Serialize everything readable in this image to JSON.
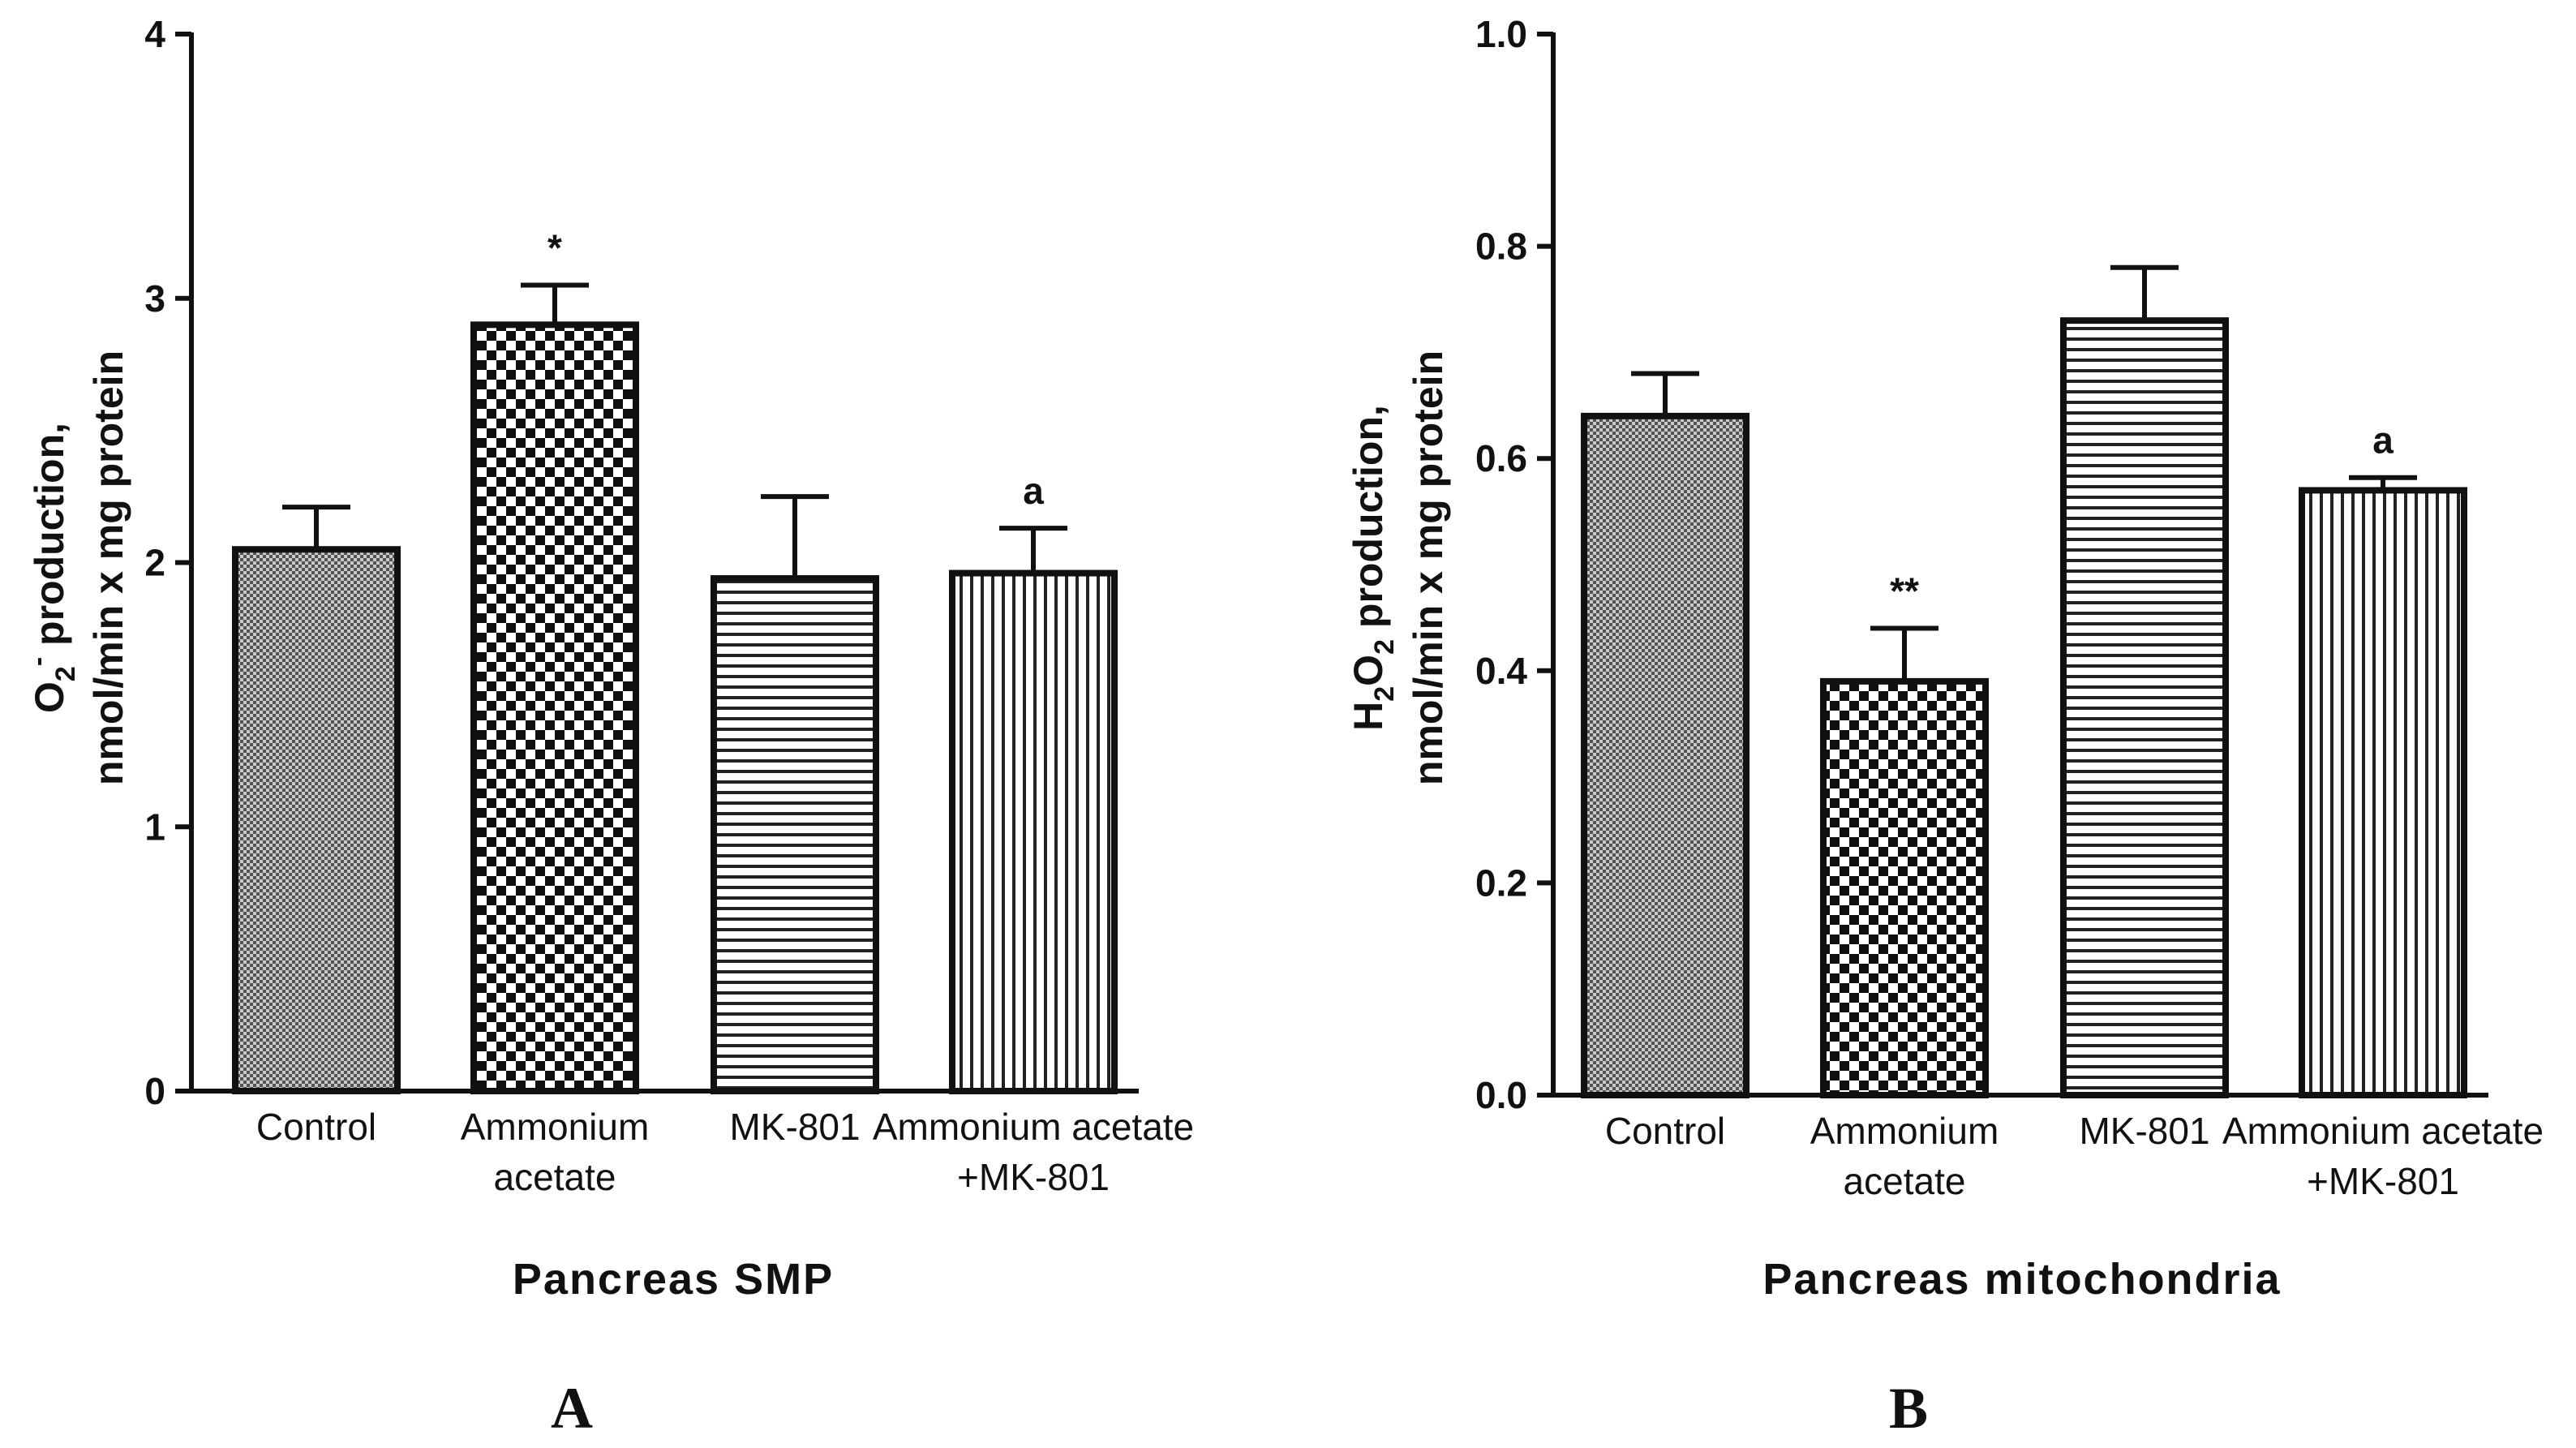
{
  "chart_data": [
    {
      "type": "bar",
      "panel": "A",
      "xlabel": "Pancreas SMP",
      "ylabel_main": "O",
      "ylabel_sub": "2",
      "ylabel_sup": "-",
      "ylabel_rest": " production,",
      "ylabel_line2": "nmol/min x mg protein",
      "ylim": [
        0,
        4
      ],
      "yticks": [
        0,
        1,
        2,
        3,
        4
      ],
      "ytick_labels": [
        "0",
        "1",
        "2",
        "3",
        "4"
      ],
      "categories": [
        [
          "Control"
        ],
        [
          "Ammonium",
          "acetate"
        ],
        [
          "MK-801"
        ],
        [
          "Ammonium acetate",
          "+MK-801"
        ]
      ],
      "patterns": [
        "fine",
        "checker",
        "hlines",
        "vlines"
      ],
      "values": [
        2.05,
        2.9,
        1.94,
        1.96
      ],
      "errors": [
        0.16,
        0.15,
        0.31,
        0.17
      ],
      "annotations": [
        "",
        "*",
        "",
        "a"
      ]
    },
    {
      "type": "bar",
      "panel": "B",
      "xlabel": "Pancreas mitochondria",
      "ylabel_main": "H",
      "ylabel_sub": "2",
      "ylabel_mid": "O",
      "ylabel_sub2": "2",
      "ylabel_rest": " production,",
      "ylabel_line2": "nmol/min x mg protein",
      "ylim": [
        0,
        1.0
      ],
      "yticks": [
        0,
        0.2,
        0.4,
        0.6,
        0.8,
        1.0
      ],
      "ytick_labels": [
        "0.0",
        "0.2",
        "0.4",
        "0.6",
        "0.8",
        "1.0"
      ],
      "categories": [
        [
          "Control"
        ],
        [
          "Ammonium",
          "acetate"
        ],
        [
          "MK-801"
        ],
        [
          "Ammonium acetate",
          "+MK-801"
        ]
      ],
      "patterns": [
        "fine",
        "checker",
        "hlines",
        "vlines"
      ],
      "values": [
        0.64,
        0.39,
        0.73,
        0.57
      ],
      "errors": [
        0.04,
        0.05,
        0.05,
        0.012
      ],
      "annotations": [
        "",
        "**",
        "",
        "a"
      ]
    }
  ]
}
